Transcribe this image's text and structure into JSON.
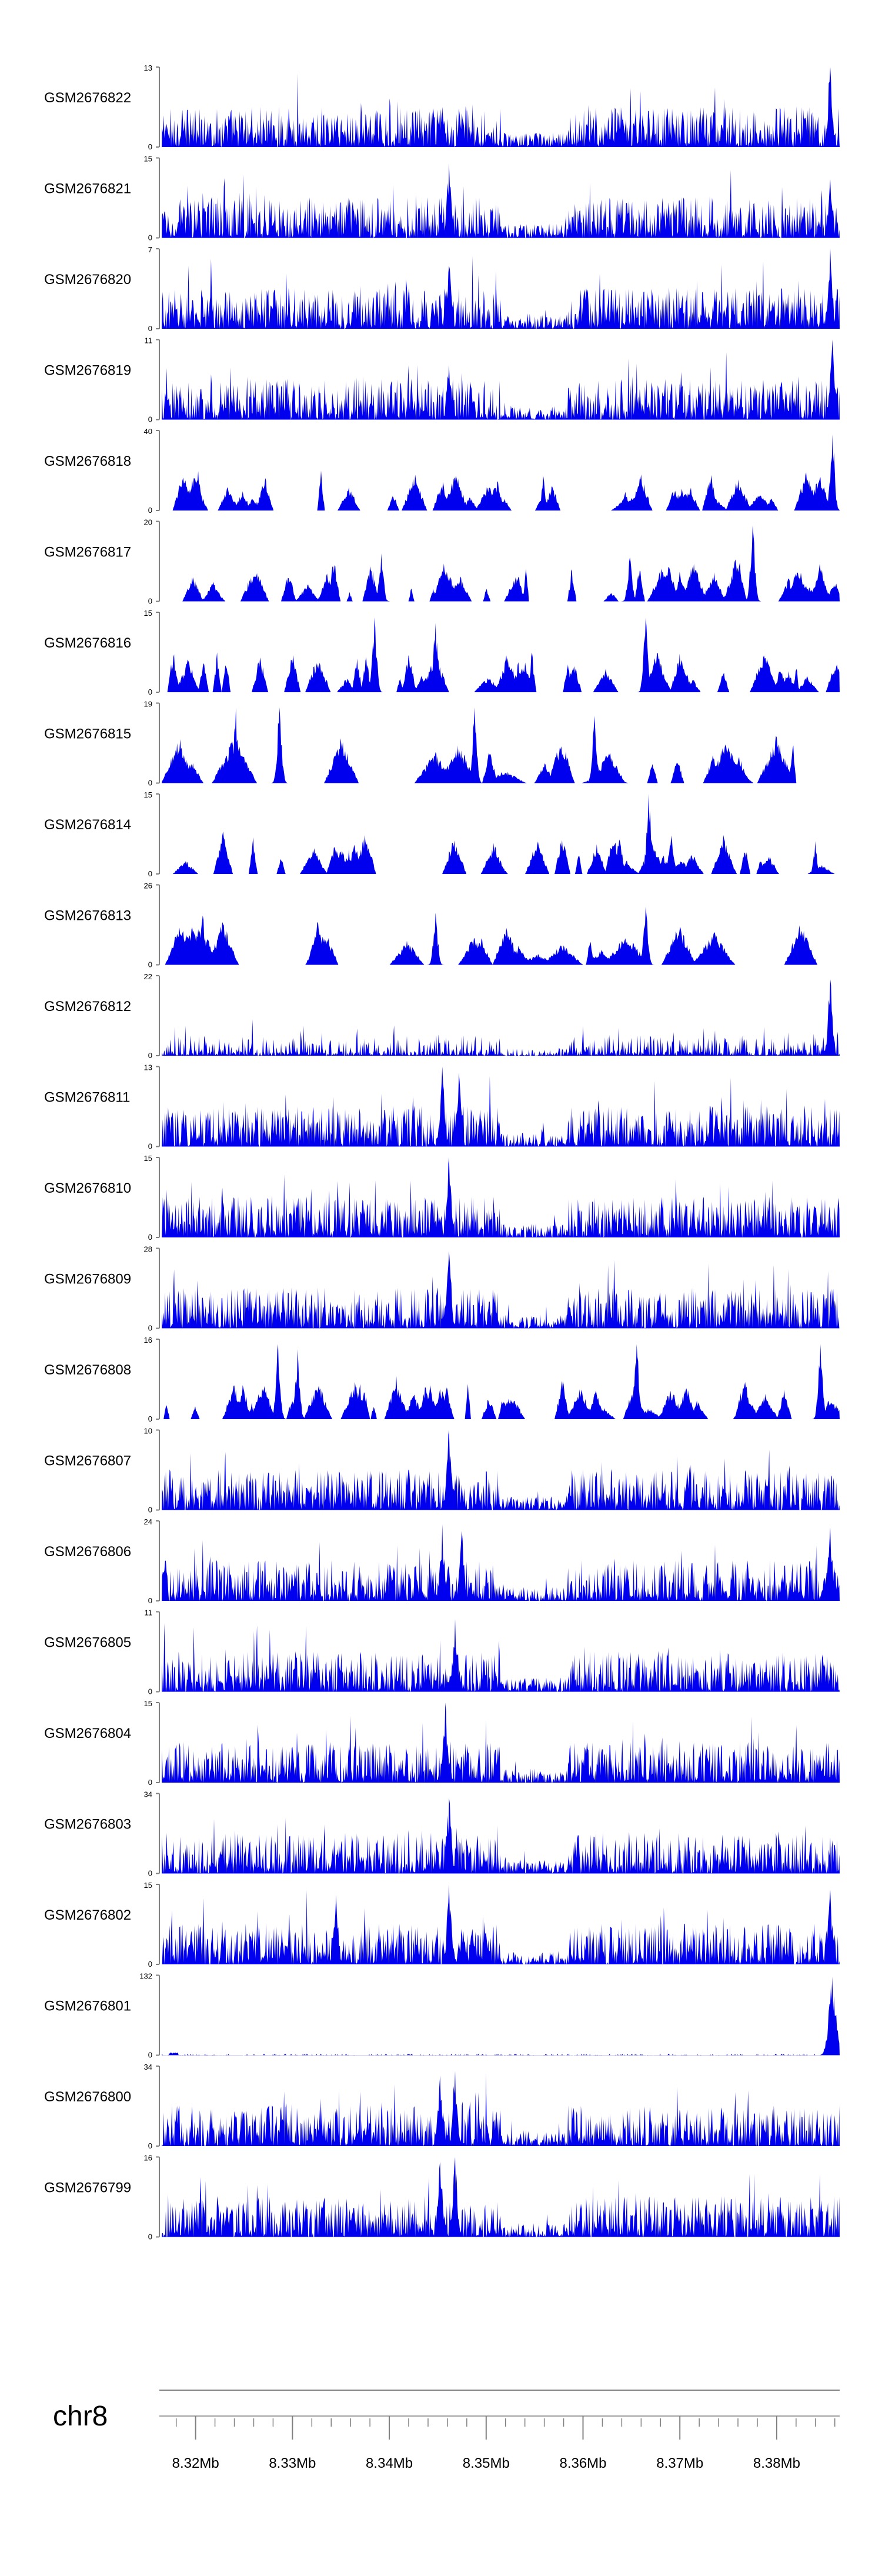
{
  "chart_data": {
    "type": "area",
    "title": "",
    "chromosome": "chr8",
    "track_color": "#0000ee",
    "axis_color": "#808080",
    "x_range": [
      8.3165,
      8.3865
    ],
    "x_unit": "Mb",
    "ylim_min": 0,
    "x_ticks": [
      8.32,
      8.33,
      8.34,
      8.35,
      8.36,
      8.37,
      8.38
    ],
    "x_tick_labels": [
      "8.32Mb",
      "8.33Mb",
      "8.34Mb",
      "8.35Mb",
      "8.36Mb",
      "8.37Mb",
      "8.38Mb"
    ],
    "x_minor_tick_step": 0.002,
    "tracks": [
      {
        "name": "GSM2676822",
        "ymax": 13,
        "ymax_label": "13",
        "zero_label": "0",
        "peaks": [
          [
            8.3455,
            6.5
          ],
          [
            8.3475,
            5.5
          ],
          [
            8.3855,
            13
          ]
        ],
        "style": "dense"
      },
      {
        "name": "GSM2676821",
        "ymax": 15,
        "ymax_label": "15",
        "zero_label": "0",
        "peaks": [
          [
            8.3462,
            14
          ],
          [
            8.3855,
            11
          ]
        ],
        "style": "dense"
      },
      {
        "name": "GSM2676820",
        "ymax": 7,
        "ymax_label": "7",
        "zero_label": "0",
        "peaks": [
          [
            8.3462,
            5.5
          ],
          [
            8.3855,
            7
          ]
        ],
        "style": "dense"
      },
      {
        "name": "GSM2676819",
        "ymax": 11,
        "ymax_label": "11",
        "zero_label": "0",
        "peaks": [
          [
            8.3462,
            7.5
          ],
          [
            8.3858,
            11
          ]
        ],
        "style": "dense"
      },
      {
        "name": "GSM2676818",
        "ymax": 40,
        "ymax_label": "40",
        "zero_label": "0",
        "peaks": [
          [
            8.3858,
            38
          ]
        ],
        "style": "sparse"
      },
      {
        "name": "GSM2676817",
        "ymax": 20,
        "ymax_label": "20",
        "zero_label": "0",
        "peaks": [
          [
            8.3392,
            12
          ],
          [
            8.3648,
            11
          ],
          [
            8.3775,
            19
          ]
        ],
        "style": "sparse"
      },
      {
        "name": "GSM2676816",
        "ymax": 15,
        "ymax_label": "15",
        "zero_label": "0",
        "peaks": [
          [
            8.3385,
            14
          ],
          [
            8.3448,
            13
          ],
          [
            8.3665,
            14
          ]
        ],
        "style": "sparse"
      },
      {
        "name": "GSM2676815",
        "ymax": 19,
        "ymax_label": "19",
        "zero_label": "0",
        "peaks": [
          [
            8.3242,
            18
          ],
          [
            8.3287,
            18
          ],
          [
            8.3488,
            18
          ],
          [
            8.3612,
            16
          ]
        ],
        "style": "very-sparse"
      },
      {
        "name": "GSM2676814",
        "ymax": 15,
        "ymax_label": "15",
        "zero_label": "0",
        "peaks": [
          [
            8.3668,
            15
          ]
        ],
        "style": "sparse"
      },
      {
        "name": "GSM2676813",
        "ymax": 26,
        "ymax_label": "26",
        "zero_label": "0",
        "peaks": [
          [
            8.3207,
            16
          ],
          [
            8.3448,
            17
          ],
          [
            8.3665,
            19
          ]
        ],
        "style": "very-sparse"
      },
      {
        "name": "GSM2676812",
        "ymax": 22,
        "ymax_label": "22",
        "zero_label": "0",
        "peaks": [
          [
            8.3855,
            21
          ]
        ],
        "style": "medium"
      },
      {
        "name": "GSM2676811",
        "ymax": 13,
        "ymax_label": "13",
        "zero_label": "0",
        "peaks": [
          [
            8.3455,
            13
          ],
          [
            8.3472,
            12
          ]
        ],
        "style": "dense"
      },
      {
        "name": "GSM2676810",
        "ymax": 15,
        "ymax_label": "15",
        "zero_label": "0",
        "peaks": [
          [
            8.3462,
            15
          ]
        ],
        "style": "dense"
      },
      {
        "name": "GSM2676809",
        "ymax": 28,
        "ymax_label": "28",
        "zero_label": "0",
        "peaks": [
          [
            8.3462,
            27
          ]
        ],
        "style": "dense"
      },
      {
        "name": "GSM2676808",
        "ymax": 16,
        "ymax_label": "16",
        "zero_label": "0",
        "peaks": [
          [
            8.3285,
            15
          ],
          [
            8.3305,
            14
          ],
          [
            8.3655,
            15
          ],
          [
            8.3845,
            15
          ]
        ],
        "style": "sparse"
      },
      {
        "name": "GSM2676807",
        "ymax": 10,
        "ymax_label": "10",
        "zero_label": "0",
        "peaks": [
          [
            8.3462,
            10
          ]
        ],
        "style": "dense"
      },
      {
        "name": "GSM2676806",
        "ymax": 24,
        "ymax_label": "24",
        "zero_label": "0",
        "peaks": [
          [
            8.3455,
            23
          ],
          [
            8.3475,
            21
          ],
          [
            8.3855,
            22
          ]
        ],
        "style": "dense"
      },
      {
        "name": "GSM2676805",
        "ymax": 11,
        "ymax_label": "11",
        "zero_label": "0",
        "peaks": [
          [
            8.3468,
            10
          ]
        ],
        "style": "dense"
      },
      {
        "name": "GSM2676804",
        "ymax": 15,
        "ymax_label": "15",
        "zero_label": "0",
        "peaks": [
          [
            8.3458,
            15
          ]
        ],
        "style": "dense"
      },
      {
        "name": "GSM2676803",
        "ymax": 34,
        "ymax_label": "34",
        "zero_label": "0",
        "peaks": [
          [
            8.3462,
            32
          ]
        ],
        "style": "dense"
      },
      {
        "name": "GSM2676802",
        "ymax": 15,
        "ymax_label": "15",
        "zero_label": "0",
        "peaks": [
          [
            8.3345,
            13
          ],
          [
            8.3462,
            15
          ],
          [
            8.3855,
            14
          ]
        ],
        "style": "dense"
      },
      {
        "name": "GSM2676801",
        "ymax": 132,
        "ymax_label": "132",
        "zero_label": "0",
        "peaks": [
          [
            8.3858,
            130
          ]
        ],
        "style": "flat"
      },
      {
        "name": "GSM2676800",
        "ymax": 34,
        "ymax_label": "34",
        "zero_label": "0",
        "peaks": [
          [
            8.3452,
            30
          ],
          [
            8.3468,
            32
          ]
        ],
        "style": "dense"
      },
      {
        "name": "GSM2676799",
        "ymax": 16,
        "ymax_label": "16",
        "zero_label": "0",
        "peaks": [
          [
            8.3452,
            15
          ],
          [
            8.3468,
            16
          ]
        ],
        "style": "dense"
      }
    ]
  }
}
